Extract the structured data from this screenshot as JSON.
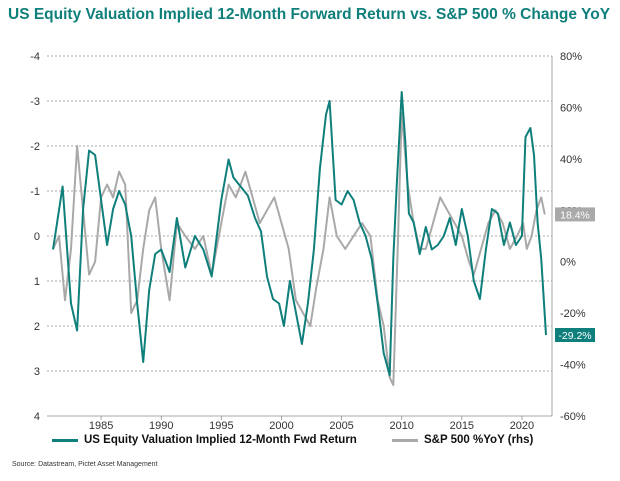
{
  "title": "US Equity Valuation Implied 12-Month Forward Return vs. S&P 500 % Change YoY",
  "source": "Source: Datastream, Pictet Asset Management",
  "colors": {
    "teal": "#0e7f7b",
    "grey": "#a9a9a9",
    "grid": "#8e8e8e"
  },
  "chart_data": {
    "type": "line",
    "x_ticks": [
      1985,
      1990,
      1995,
      2000,
      2005,
      2010,
      2015,
      2020
    ],
    "xlim": [
      1980.5,
      2022.5
    ],
    "left_axis": {
      "ticks": [
        "-4",
        "-3",
        "-2",
        "-1",
        "0",
        "1",
        "2",
        "3",
        "4"
      ],
      "inverted": true,
      "ylim": [
        -4,
        4
      ]
    },
    "right_axis": {
      "ticks": [
        "80%",
        "60%",
        "40%",
        "20%",
        "0%",
        "-20%",
        "-40%",
        "-60%"
      ],
      "ylim": [
        -60,
        80
      ]
    },
    "grid": "horizontal dashed",
    "legend_position": "bottom",
    "series": [
      {
        "name": "US Equity Valuation Implied 12-Month Fwd Return",
        "axis": "left",
        "x": [
          1981.0,
          1981.8,
          1982.5,
          1983.0,
          1983.5,
          1984.0,
          1984.5,
          1985.0,
          1985.5,
          1986.0,
          1986.5,
          1987.0,
          1987.5,
          1988.0,
          1988.5,
          1989.0,
          1989.5,
          1990.0,
          1990.7,
          1991.3,
          1992.0,
          1992.8,
          1993.5,
          1994.2,
          1995.0,
          1995.6,
          1996.0,
          1996.6,
          1997.2,
          1997.8,
          1998.3,
          1998.8,
          1999.3,
          1999.8,
          2000.2,
          2000.7,
          2001.2,
          2001.7,
          2002.2,
          2002.7,
          2003.2,
          2003.7,
          2004.0,
          2004.5,
          2005.0,
          2005.5,
          2006.0,
          2006.5,
          2007.0,
          2007.5,
          2008.0,
          2008.5,
          2009.0,
          2009.3,
          2009.6,
          2010.0,
          2010.3,
          2010.6,
          2011.0,
          2011.5,
          2012.0,
          2012.5,
          2013.0,
          2013.5,
          2014.0,
          2014.5,
          2015.0,
          2015.5,
          2016.0,
          2016.5,
          2017.0,
          2017.5,
          2018.0,
          2018.5,
          2019.0,
          2019.5,
          2020.0,
          2020.3,
          2020.7,
          2021.0,
          2021.3,
          2021.6,
          2022.0
        ],
        "y": [
          0.3,
          -1.1,
          1.5,
          2.1,
          -0.6,
          -1.9,
          -1.8,
          -0.8,
          0.2,
          -0.6,
          -1.0,
          -0.7,
          0.0,
          1.5,
          2.8,
          1.2,
          0.4,
          0.3,
          0.8,
          -0.4,
          0.7,
          0.0,
          0.3,
          0.9,
          -0.8,
          -1.7,
          -1.3,
          -1.1,
          -0.9,
          -0.4,
          -0.1,
          0.9,
          1.4,
          1.5,
          2.0,
          1.0,
          1.7,
          2.4,
          1.5,
          0.3,
          -1.5,
          -2.7,
          -3.0,
          -0.8,
          -0.7,
          -1.0,
          -0.8,
          -0.3,
          0.0,
          0.5,
          1.5,
          2.6,
          3.1,
          0.5,
          -1.2,
          -3.2,
          -2.1,
          -0.5,
          -0.3,
          0.4,
          -0.2,
          0.3,
          0.2,
          0.0,
          -0.4,
          0.2,
          -0.6,
          0.0,
          1.0,
          1.4,
          0.3,
          -0.6,
          -0.5,
          0.2,
          -0.3,
          0.2,
          0.0,
          -2.2,
          -2.4,
          -1.8,
          -0.3,
          0.5,
          2.2
        ]
      },
      {
        "name": "S&P 500 %YoY (rhs)",
        "axis": "right",
        "x": [
          1981.0,
          1981.5,
          1982.0,
          1982.5,
          1983.0,
          1983.5,
          1984.0,
          1984.5,
          1985.0,
          1985.5,
          1986.0,
          1986.5,
          1987.0,
          1987.5,
          1988.0,
          1988.5,
          1989.0,
          1989.5,
          1990.0,
          1990.7,
          1991.3,
          1992.0,
          1992.8,
          1993.5,
          1994.2,
          1995.0,
          1995.6,
          1996.2,
          1997.0,
          1997.6,
          1998.2,
          1998.8,
          1999.4,
          2000.0,
          2000.6,
          2001.2,
          2001.8,
          2002.4,
          2002.9,
          2003.5,
          2004.0,
          2004.6,
          2005.3,
          2006.0,
          2006.7,
          2007.4,
          2008.0,
          2008.5,
          2009.0,
          2009.3,
          2009.7,
          2010.0,
          2010.5,
          2011.0,
          2011.5,
          2012.0,
          2012.6,
          2013.2,
          2013.8,
          2014.4,
          2015.0,
          2015.6,
          2016.0,
          2016.6,
          2017.2,
          2017.8,
          2018.4,
          2019.0,
          2019.6,
          2020.1,
          2020.4,
          2020.8,
          2021.2,
          2021.6,
          2021.9
        ],
        "y": [
          5,
          10,
          -15,
          5,
          45,
          20,
          -5,
          0,
          25,
          30,
          25,
          35,
          30,
          -20,
          -15,
          5,
          20,
          25,
          5,
          -15,
          15,
          10,
          5,
          10,
          -5,
          15,
          30,
          25,
          35,
          25,
          15,
          20,
          25,
          15,
          5,
          -15,
          -20,
          -25,
          -10,
          5,
          25,
          10,
          5,
          10,
          15,
          10,
          -15,
          -25,
          -45,
          -48,
          10,
          58,
          30,
          15,
          5,
          5,
          15,
          25,
          20,
          15,
          10,
          0,
          -5,
          5,
          15,
          20,
          15,
          5,
          10,
          15,
          5,
          10,
          20,
          25,
          18.4
        ]
      }
    ],
    "end_labels": [
      {
        "series": "S&P 500 %YoY (rhs)",
        "text": "18.4%"
      },
      {
        "series": "US Equity Valuation Implied 12-Month Fwd Return",
        "text": "-29.2%"
      }
    ]
  },
  "legend": {
    "item1": "US Equity Valuation Implied 12-Month Fwd Return",
    "item2": "S&P 500 %YoY (rhs)"
  }
}
